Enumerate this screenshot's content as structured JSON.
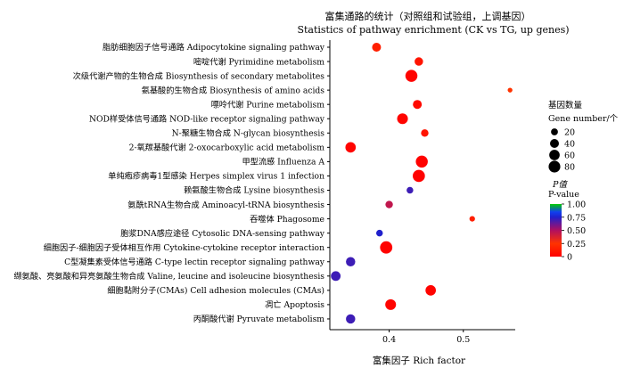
{
  "chart_data": {
    "type": "scatter",
    "title": "富集通路的统计（对照组和试验组，上调基因）",
    "subtitle": "Statistics of pathway enrichment (CK vs TG, up genes)",
    "xlabel": "富集因子  Rich factor",
    "xlim": [
      0.32,
      0.57
    ],
    "xticks": [
      {
        "value": 0.4,
        "label": "0.4"
      },
      {
        "value": 0.5,
        "label": "0.5"
      }
    ],
    "grid": false,
    "categories": [
      "脂肪细胞因子信号通路  Adipocytokine signaling pathway",
      "嘧啶代谢  Pyrimidine metabolism",
      "次级代谢产物的生物合成  Biosynthesis of secondary metabolites",
      "氨基酸的生物合成  Biosynthesis of amino acids",
      "嘌呤代谢  Purine metabolism",
      "NOD样受体信号通路  NOD-like receptor signaling pathway",
      "N-聚糖生物合成  N-glycan biosynthesis",
      "2-氧羰基酸代谢  2-oxocarboxylic acid metabolism",
      "甲型流感  Influenza A",
      "单纯疱疹病毒1型感染  Herpes simplex virus 1 infection",
      "赖氨酸生物合成  Lysine biosynthesis",
      "氨酰tRNA生物合成  Aminoacyl-tRNA biosynthesis",
      "吞噬体  Phagosome",
      "胞浆DNA感应途径  Cytosolic DNA-sensing pathway",
      "细胞因子-细胞因子受体相互作用  Cytokine-cytokine receptor interaction",
      "C型凝集素受体信号通路  C-type lectin receptor signaling pathway",
      "缬氨酸、亮氨酸和异亮氨酸生物合成  Valine, leucine and isoleucine biosynthesis",
      "细胞黏附分子(CMAs)  Cell adhesion molecules (CMAs)",
      "凋亡  Apoptosis",
      "丙酮酸代谢  Pyruvate metabolism"
    ],
    "points": [
      {
        "x": 0.383,
        "size": 40,
        "p": 0.15
      },
      {
        "x": 0.44,
        "size": 35,
        "p": 0.1
      },
      {
        "x": 0.43,
        "size": 85,
        "p": 0.02
      },
      {
        "x": 0.563,
        "size": 6,
        "p": 0.25
      },
      {
        "x": 0.438,
        "size": 40,
        "p": 0.05
      },
      {
        "x": 0.418,
        "size": 65,
        "p": 0.02
      },
      {
        "x": 0.448,
        "size": 25,
        "p": 0.1
      },
      {
        "x": 0.348,
        "size": 60,
        "p": 0.02
      },
      {
        "x": 0.444,
        "size": 85,
        "p": 0.01
      },
      {
        "x": 0.44,
        "size": 88,
        "p": 0.01
      },
      {
        "x": 0.428,
        "size": 18,
        "p": 0.7
      },
      {
        "x": 0.4,
        "size": 25,
        "p": 0.45
      },
      {
        "x": 0.512,
        "size": 10,
        "p": 0.15
      },
      {
        "x": 0.387,
        "size": 18,
        "p": 0.75
      },
      {
        "x": 0.396,
        "size": 90,
        "p": 0.01
      },
      {
        "x": 0.348,
        "size": 45,
        "p": 0.7
      },
      {
        "x": 0.328,
        "size": 50,
        "p": 0.7
      },
      {
        "x": 0.456,
        "size": 60,
        "p": 0.02
      },
      {
        "x": 0.402,
        "size": 65,
        "p": 0.02
      },
      {
        "x": 0.348,
        "size": 45,
        "p": 0.7
      }
    ],
    "size_legend": {
      "title": "基因数量",
      "subtitle": "Gene number/个",
      "entries": [
        {
          "value": 20,
          "label": "20"
        },
        {
          "value": 40,
          "label": "40"
        },
        {
          "value": 60,
          "label": "60"
        },
        {
          "value": 80,
          "label": "80"
        }
      ]
    },
    "color_legend": {
      "title": "P值",
      "subtitle": "P-value",
      "range": [
        0,
        1
      ],
      "ticks": [
        {
          "value": 1.0,
          "label": "1.00"
        },
        {
          "value": 0.75,
          "label": "0.75"
        },
        {
          "value": 0.5,
          "label": "0.50"
        },
        {
          "value": 0.25,
          "label": "0.25"
        },
        {
          "value": 0,
          "label": "0"
        }
      ],
      "stops": [
        {
          "value": 0,
          "color": "#ff0000"
        },
        {
          "value": 0.25,
          "color": "#ff3300"
        },
        {
          "value": 0.5,
          "color": "#b01060"
        },
        {
          "value": 0.75,
          "color": "#2020cc"
        },
        {
          "value": 0.85,
          "color": "#1040f0"
        },
        {
          "value": 1.0,
          "color": "#00cc00"
        }
      ]
    }
  }
}
